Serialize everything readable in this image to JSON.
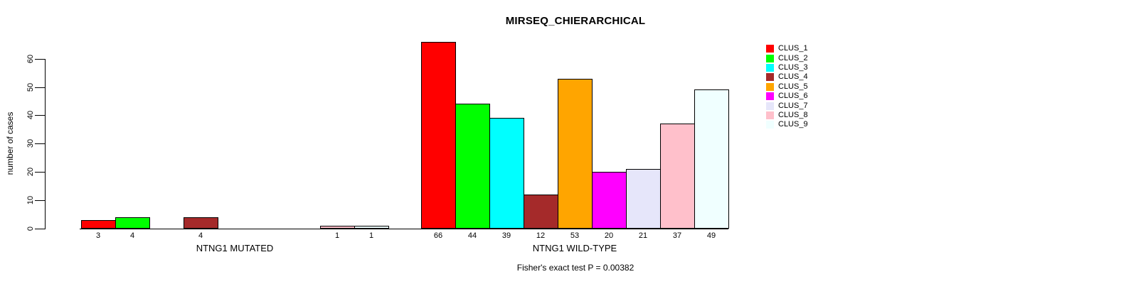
{
  "chart_data": {
    "type": "bar",
    "title": "MIRSEQ_CHIERARCHICAL",
    "ylabel": "number of cases",
    "xlabel": "",
    "annotation": "Fisher's exact test P = 0.00382",
    "categories": [
      "NTNG1 MUTATED",
      "NTNG1 WILD-TYPE"
    ],
    "series": [
      {
        "name": "CLUS_1",
        "color": "#ff0000",
        "values": [
          3,
          66
        ]
      },
      {
        "name": "CLUS_2",
        "color": "#00ff00",
        "values": [
          4,
          44
        ]
      },
      {
        "name": "CLUS_3",
        "color": "#00ffff",
        "values": [
          0,
          39
        ]
      },
      {
        "name": "CLUS_4",
        "color": "#a52a2a",
        "values": [
          4,
          12
        ]
      },
      {
        "name": "CLUS_5",
        "color": "#ffa500",
        "values": [
          0,
          53
        ]
      },
      {
        "name": "CLUS_6",
        "color": "#ff00ff",
        "values": [
          0,
          20
        ]
      },
      {
        "name": "CLUS_7",
        "color": "#e6e6fa",
        "values": [
          0,
          21
        ]
      },
      {
        "name": "CLUS_8",
        "color": "#ffc0cb",
        "values": [
          1,
          37
        ]
      },
      {
        "name": "CLUS_9",
        "color": "#f0ffff",
        "values": [
          1,
          49
        ]
      }
    ],
    "ylim": [
      0,
      60
    ],
    "yticks": [
      0,
      10,
      20,
      30,
      40,
      50,
      60
    ],
    "grid": false,
    "value_labels": "nonzero bars labeled below axis",
    "legend": {
      "position": "top-right",
      "entries": [
        "CLUS_1",
        "CLUS_2",
        "CLUS_3",
        "CLUS_4",
        "CLUS_5",
        "CLUS_6",
        "CLUS_7",
        "CLUS_8",
        "CLUS_9"
      ]
    },
    "bar_border_color": "#000000",
    "text_color": "#000000",
    "background": "#ffffff"
  }
}
